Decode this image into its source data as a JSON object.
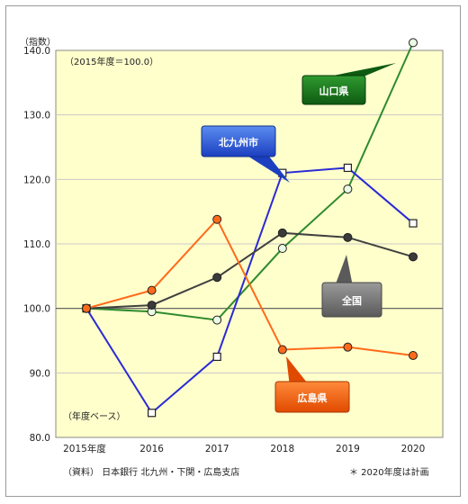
{
  "chart_data": {
    "type": "line",
    "ylabel": "（指数）",
    "base_note": "（2015年度＝100.0）",
    "x_note": "（年度ベース）",
    "source": "（資料） 日本銀行 北九州・下関・広島支店",
    "footnote": "＊ 2020年度は計画",
    "categories": [
      "2015年度",
      "2016",
      "2017",
      "2018",
      "2019",
      "2020"
    ],
    "y_ticks": [
      "140.0",
      "130.0",
      "120.0",
      "110.0",
      "100.0",
      "90.0",
      "80.0"
    ],
    "ylim": [
      80,
      140
    ],
    "grid": true,
    "series": [
      {
        "name": "山口県",
        "color": "#2e8b2e",
        "marker": "circle-light",
        "values": [
          100.0,
          99.5,
          98.2,
          109.3,
          118.5,
          141.2
        ]
      },
      {
        "name": "北九州市",
        "color": "#2a2ad6",
        "marker": "square",
        "values": [
          100.0,
          83.8,
          92.5,
          121.0,
          121.8,
          113.2
        ]
      },
      {
        "name": "全国",
        "color": "#404040",
        "marker": "circle-dark",
        "values": [
          100.0,
          100.5,
          104.8,
          111.7,
          111.0,
          108.0
        ]
      },
      {
        "name": "広島県",
        "color": "#ff6a1a",
        "marker": "circle-orange",
        "values": [
          100.0,
          102.8,
          113.8,
          93.6,
          94.0,
          92.7
        ]
      }
    ]
  }
}
